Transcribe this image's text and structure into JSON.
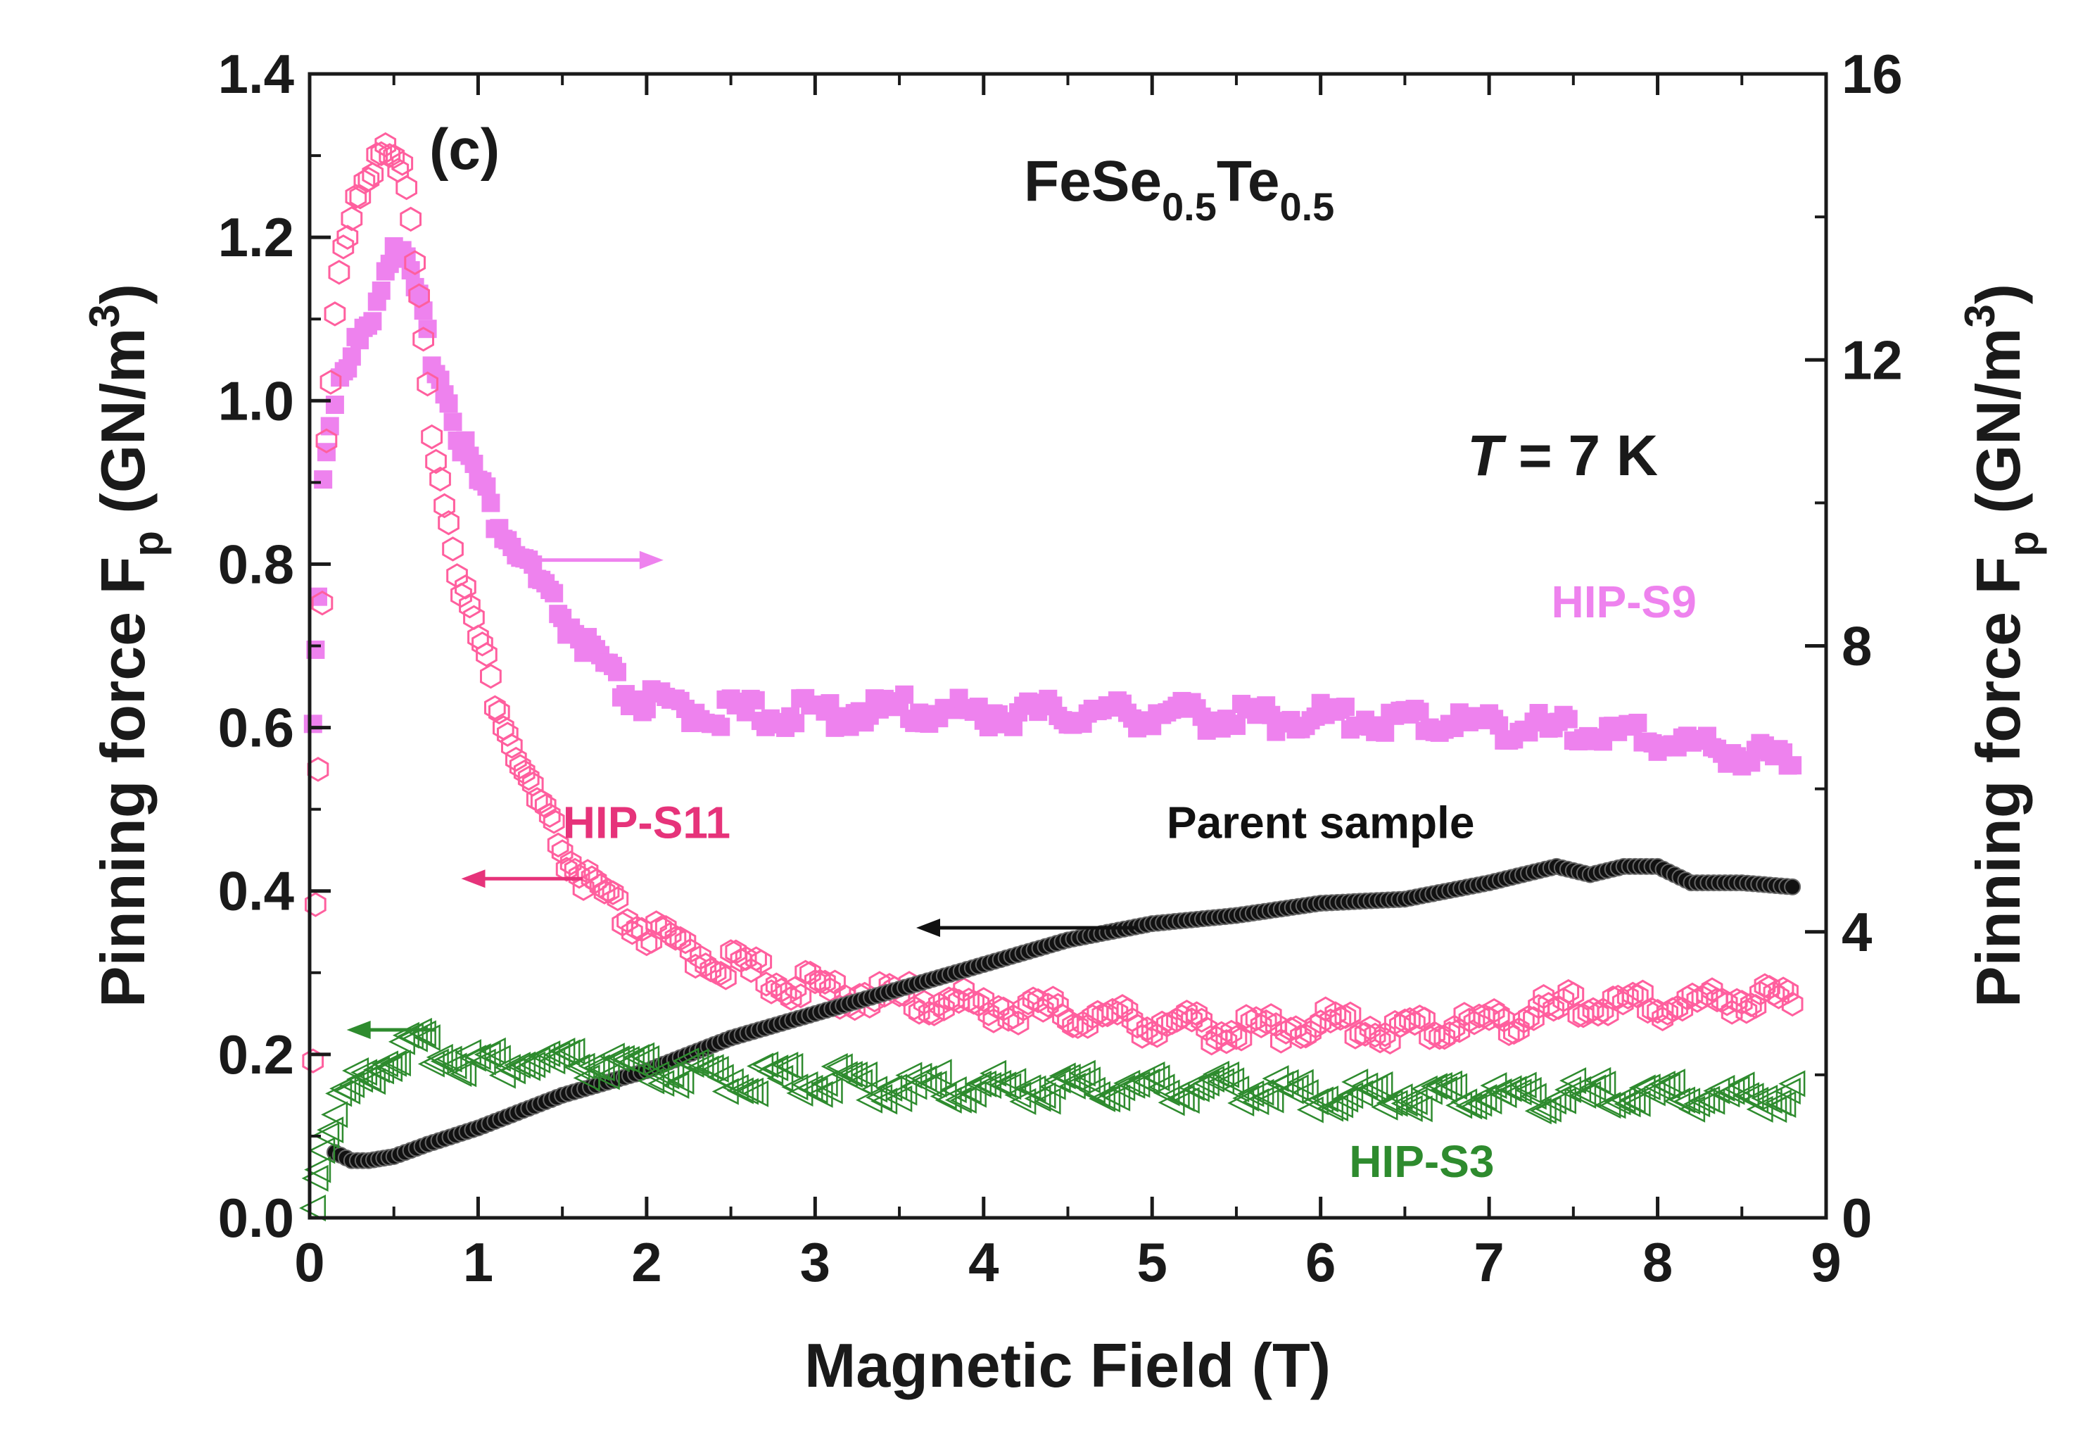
{
  "chart_data": {
    "type": "scatter",
    "panel_label": "(c)",
    "title_parts": {
      "base": "FeSe",
      "sub1": "0.5",
      "mid": "Te",
      "sub2": "0.5"
    },
    "temperature_label": {
      "italic": "T",
      "rest": " = 7 K"
    },
    "xlabel": "Magnetic Field (T)",
    "ylabel_left": {
      "main": "Pinning force F",
      "sub": "p",
      "unit_pre": " (GN/m",
      "unit_sup": "3",
      "unit_post": ")"
    },
    "ylabel_right": {
      "main": "Pinning force F",
      "sub": "p",
      "unit_pre": " (GN/m",
      "unit_sup": "3",
      "unit_post": ")"
    },
    "xlim": [
      0,
      9
    ],
    "ylim_left": [
      0,
      1.4
    ],
    "ylim_right": [
      0,
      16
    ],
    "x_ticks": [
      "0",
      "1",
      "2",
      "3",
      "4",
      "5",
      "6",
      "7",
      "8",
      "9"
    ],
    "y_left_ticks": [
      "0.0",
      "0.2",
      "0.4",
      "0.6",
      "0.8",
      "1.0",
      "1.2",
      "1.4"
    ],
    "y_right_ticks": [
      "0",
      "4",
      "8",
      "12",
      "16"
    ],
    "series": [
      {
        "name": "HIP-S9",
        "axis": "right",
        "marker": "filled-square",
        "color": "#ee82ee",
        "points": [
          [
            0.02,
            7.0
          ],
          [
            0.05,
            8.7
          ],
          [
            0.08,
            10.3
          ],
          [
            0.12,
            11.1
          ],
          [
            0.18,
            11.5
          ],
          [
            0.25,
            11.9
          ],
          [
            0.32,
            12.3
          ],
          [
            0.4,
            12.8
          ],
          [
            0.45,
            13.2
          ],
          [
            0.5,
            13.6
          ],
          [
            0.55,
            13.3
          ],
          [
            0.6,
            13.0
          ],
          [
            0.7,
            12.2
          ],
          [
            0.8,
            11.5
          ],
          [
            0.9,
            10.8
          ],
          [
            1.0,
            10.2
          ],
          [
            1.1,
            9.7
          ],
          [
            1.2,
            9.3
          ],
          [
            1.3,
            9.0
          ],
          [
            1.4,
            8.6
          ],
          [
            1.5,
            8.3
          ],
          [
            1.6,
            8.0
          ],
          [
            1.7,
            7.7
          ],
          [
            1.8,
            7.4
          ],
          [
            1.9,
            7.2
          ],
          [
            2.0,
            7.1
          ],
          [
            2.2,
            7.0
          ],
          [
            2.5,
            6.95
          ],
          [
            3.0,
            6.95
          ],
          [
            3.5,
            7.0
          ],
          [
            4.0,
            6.95
          ],
          [
            4.5,
            6.95
          ],
          [
            5.0,
            6.95
          ],
          [
            5.5,
            6.9
          ],
          [
            6.0,
            6.9
          ],
          [
            6.5,
            6.85
          ],
          [
            7.0,
            6.8
          ],
          [
            7.5,
            6.7
          ],
          [
            8.0,
            6.6
          ],
          [
            8.5,
            6.4
          ],
          [
            8.8,
            6.3
          ]
        ]
      },
      {
        "name": "HIP-S11",
        "axis": "left",
        "marker": "open-hexagon",
        "color": "#ff5f9e",
        "points": [
          [
            0.02,
            0.2
          ],
          [
            0.05,
            0.55
          ],
          [
            0.1,
            0.95
          ],
          [
            0.15,
            1.1
          ],
          [
            0.2,
            1.17
          ],
          [
            0.25,
            1.21
          ],
          [
            0.3,
            1.24
          ],
          [
            0.35,
            1.27
          ],
          [
            0.4,
            1.3
          ],
          [
            0.45,
            1.31
          ],
          [
            0.5,
            1.3
          ],
          [
            0.55,
            1.27
          ],
          [
            0.6,
            1.2
          ],
          [
            0.65,
            1.1
          ],
          [
            0.7,
            1.0
          ],
          [
            0.75,
            0.93
          ],
          [
            0.8,
            0.87
          ],
          [
            0.85,
            0.82
          ],
          [
            0.9,
            0.77
          ],
          [
            1.0,
            0.7
          ],
          [
            1.1,
            0.63
          ],
          [
            1.2,
            0.57
          ],
          [
            1.3,
            0.52
          ],
          [
            1.4,
            0.48
          ],
          [
            1.5,
            0.44
          ],
          [
            1.6,
            0.41
          ],
          [
            1.7,
            0.39
          ],
          [
            1.8,
            0.37
          ],
          [
            2.0,
            0.34
          ],
          [
            2.2,
            0.32
          ],
          [
            2.5,
            0.3
          ],
          [
            2.8,
            0.28
          ],
          [
            3.0,
            0.27
          ],
          [
            3.5,
            0.26
          ],
          [
            4.0,
            0.25
          ],
          [
            4.5,
            0.24
          ],
          [
            5.0,
            0.23
          ],
          [
            5.5,
            0.22
          ],
          [
            6.0,
            0.23
          ],
          [
            6.5,
            0.22
          ],
          [
            7.0,
            0.23
          ],
          [
            7.5,
            0.25
          ],
          [
            8.0,
            0.25
          ],
          [
            8.5,
            0.26
          ],
          [
            8.8,
            0.26
          ]
        ]
      },
      {
        "name": "Parent sample",
        "axis": "left",
        "marker": "filled-circle",
        "color": "#111111",
        "points": [
          [
            0.15,
            0.08
          ],
          [
            0.25,
            0.07
          ],
          [
            0.35,
            0.07
          ],
          [
            0.5,
            0.075
          ],
          [
            0.7,
            0.09
          ],
          [
            1.0,
            0.11
          ],
          [
            1.5,
            0.15
          ],
          [
            2.0,
            0.18
          ],
          [
            2.5,
            0.22
          ],
          [
            3.0,
            0.25
          ],
          [
            3.5,
            0.28
          ],
          [
            4.0,
            0.31
          ],
          [
            4.5,
            0.34
          ],
          [
            5.0,
            0.36
          ],
          [
            5.5,
            0.37
          ],
          [
            6.0,
            0.385
          ],
          [
            6.5,
            0.39
          ],
          [
            7.0,
            0.41
          ],
          [
            7.4,
            0.43
          ],
          [
            7.6,
            0.42
          ],
          [
            7.8,
            0.43
          ],
          [
            8.0,
            0.43
          ],
          [
            8.2,
            0.41
          ],
          [
            8.5,
            0.41
          ],
          [
            8.8,
            0.405
          ]
        ]
      },
      {
        "name": "HIP-S3",
        "axis": "left",
        "marker": "open-triangle",
        "color": "#2e8b2e",
        "points": [
          [
            0.02,
            0.02
          ],
          [
            0.05,
            0.06
          ],
          [
            0.1,
            0.1
          ],
          [
            0.2,
            0.14
          ],
          [
            0.3,
            0.16
          ],
          [
            0.4,
            0.18
          ],
          [
            0.5,
            0.19
          ],
          [
            0.6,
            0.2
          ],
          [
            0.7,
            0.2
          ],
          [
            0.8,
            0.19
          ],
          [
            1.0,
            0.18
          ],
          [
            1.5,
            0.18
          ],
          [
            2.0,
            0.17
          ],
          [
            2.5,
            0.16
          ],
          [
            3.0,
            0.16
          ],
          [
            3.5,
            0.15
          ],
          [
            4.0,
            0.15
          ],
          [
            4.5,
            0.15
          ],
          [
            5.0,
            0.15
          ],
          [
            5.5,
            0.15
          ],
          [
            6.0,
            0.14
          ],
          [
            6.5,
            0.14
          ],
          [
            7.0,
            0.14
          ],
          [
            7.5,
            0.14
          ],
          [
            8.0,
            0.14
          ],
          [
            8.5,
            0.14
          ],
          [
            8.8,
            0.14
          ]
        ]
      }
    ],
    "annotations": [
      {
        "text": "HIP-S9",
        "color": "#ee82ee",
        "x": 7.8,
        "y": 0.735
      },
      {
        "text": "HIP-S11",
        "color": "#e6337a",
        "x": 2.0,
        "y": 0.465
      },
      {
        "text": "Parent sample",
        "color": "#111111",
        "x": 6.0,
        "y": 0.465
      },
      {
        "text": "HIP-S3",
        "color": "#2e8b2e",
        "x": 6.6,
        "y": 0.05
      }
    ],
    "arrows": [
      {
        "series": "HIP-S9",
        "direction": "right",
        "color": "#ee82ee",
        "x_from": 1.2,
        "x_to": 2.1,
        "y": 0.805
      },
      {
        "series": "HIP-S11",
        "direction": "left",
        "color": "#e6337a",
        "x_from": 1.62,
        "x_to": 0.9,
        "y": 0.415
      },
      {
        "series": "Parent sample",
        "direction": "left",
        "color": "#111111",
        "x_from": 4.9,
        "x_to": 3.6,
        "y": 0.355
      },
      {
        "series": "HIP-S3",
        "direction": "left",
        "color": "#2e8b2e",
        "x_from": 0.75,
        "x_to": 0.22,
        "y": 0.23
      }
    ]
  }
}
